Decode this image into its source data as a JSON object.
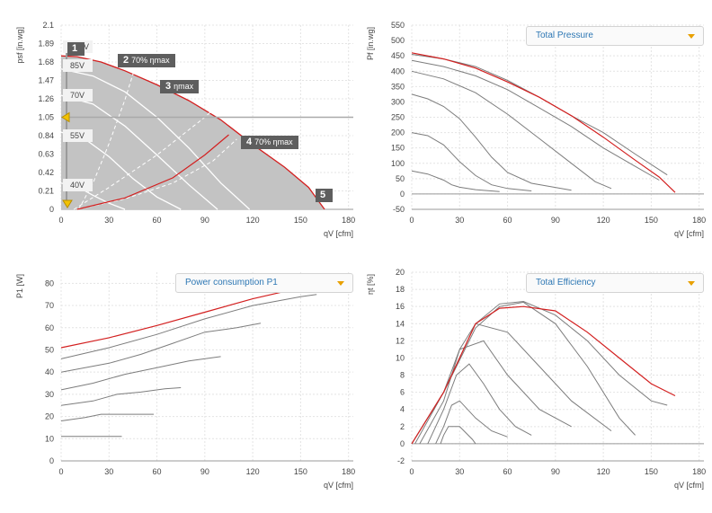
{
  "chart_data": [
    {
      "type": "area",
      "ylabel": "psf [in.wg]",
      "xlabel": "qV [cfm]",
      "x_ticks": [
        "0",
        "30",
        "60",
        "90",
        "120",
        "150",
        "180"
      ],
      "y_ticks": [
        "0",
        "0.21",
        "0.42",
        "0.63",
        "0.84",
        "1.05",
        "1.26",
        "1.47",
        "1.68",
        "1.89",
        "2.1"
      ],
      "xlim": [
        0,
        183
      ],
      "ylim": [
        0,
        2.1
      ],
      "grid": true,
      "operating_area": [
        [
          0,
          1.75
        ],
        [
          10,
          1.74
        ],
        [
          25,
          1.68
        ],
        [
          40,
          1.58
        ],
        [
          60,
          1.42
        ],
        [
          80,
          1.24
        ],
        [
          100,
          1.02
        ],
        [
          120,
          0.74
        ],
        [
          140,
          0.48
        ],
        [
          155,
          0.25
        ],
        [
          165,
          0
        ]
      ],
      "voltage_curves": [
        {
          "label": "85V",
          "points": [
            [
              0,
              1.6
            ],
            [
              20,
              1.52
            ],
            [
              40,
              1.34
            ],
            [
              60,
              1.05
            ],
            [
              80,
              0.7
            ],
            [
              100,
              0.3
            ],
            [
              118,
              0
            ]
          ]
        },
        {
          "label": "70V",
          "points": [
            [
              0,
              1.3
            ],
            [
              20,
              1.2
            ],
            [
              40,
              0.95
            ],
            [
              60,
              0.62
            ],
            [
              80,
              0.28
            ],
            [
              98,
              0
            ]
          ]
        },
        {
          "label": "55V",
          "points": [
            [
              0,
              0.88
            ],
            [
              15,
              0.8
            ],
            [
              30,
              0.6
            ],
            [
              45,
              0.35
            ],
            [
              60,
              0.14
            ],
            [
              75,
              0
            ]
          ]
        },
        {
          "label": "40V",
          "points": [
            [
              0,
              0.3
            ],
            [
              10,
              0.26
            ],
            [
              20,
              0.16
            ],
            [
              30,
              0.07
            ],
            [
              40,
              0
            ]
          ]
        }
      ],
      "eff_curves": [
        {
          "points": [
            [
              11,
              0
            ],
            [
              20,
              0.3
            ],
            [
              30,
              0.75
            ],
            [
              40,
              1.25
            ],
            [
              46,
              1.6
            ]
          ]
        },
        {
          "points": [
            [
              8,
              0
            ],
            [
              30,
              0.25
            ],
            [
              60,
              0.62
            ],
            [
              90,
              1.05
            ],
            [
              110,
              1.38
            ]
          ]
        },
        {
          "points": [
            [
              10,
              0
            ],
            [
              40,
              0.12
            ],
            [
              70,
              0.3
            ],
            [
              95,
              0.55
            ],
            [
              110,
              0.8
            ]
          ]
        }
      ],
      "operating_line": {
        "points": [
          [
            10,
            0
          ],
          [
            40,
            0.13
          ],
          [
            70,
            0.36
          ],
          [
            90,
            0.62
          ],
          [
            105,
            0.85
          ]
        ]
      },
      "voltage_label_positions": [
        [
          "100V",
          1.85
        ],
        [
          "85V",
          1.64
        ],
        [
          "70V",
          1.3
        ],
        [
          "55V",
          0.84
        ],
        [
          "40V",
          0.28
        ]
      ],
      "markers": [
        {
          "num": "1",
          "text": ""
        },
        {
          "num": "2",
          "text": "70% ηmax"
        },
        {
          "num": "3",
          "text": "ηmax"
        },
        {
          "num": "4",
          "text": "70% ηmax"
        },
        {
          "num": "5",
          "text": ""
        }
      ]
    },
    {
      "type": "line",
      "ylabel": "Pf [in.wg]",
      "xlabel": "qV [cfm]",
      "dropdown": "Total Pressure",
      "x_ticks": [
        "0",
        "30",
        "60",
        "90",
        "120",
        "150",
        "180"
      ],
      "y_ticks": [
        "-50",
        "0",
        "50",
        "100",
        "150",
        "200",
        "250",
        "300",
        "350",
        "400",
        "450",
        "500",
        "550"
      ],
      "xlim": [
        0,
        183
      ],
      "ylim": [
        -50,
        550
      ],
      "series": [
        {
          "color": "#7d7d7d",
          "points": [
            [
              0,
              455
            ],
            [
              20,
              440
            ],
            [
              40,
              415
            ],
            [
              60,
              370
            ],
            [
              80,
              315
            ],
            [
              100,
              255
            ],
            [
              120,
              200
            ],
            [
              140,
              130
            ],
            [
              160,
              62
            ]
          ]
        },
        {
          "color": "#7d7d7d",
          "points": [
            [
              0,
              435
            ],
            [
              20,
              415
            ],
            [
              40,
              385
            ],
            [
              60,
              340
            ],
            [
              80,
              280
            ],
            [
              100,
              220
            ],
            [
              120,
              150
            ],
            [
              140,
              90
            ],
            [
              155,
              45
            ]
          ]
        },
        {
          "color": "#7d7d7d",
          "points": [
            [
              0,
              400
            ],
            [
              20,
              375
            ],
            [
              40,
              330
            ],
            [
              60,
              260
            ],
            [
              80,
              180
            ],
            [
              100,
              100
            ],
            [
              115,
              40
            ],
            [
              125,
              18
            ]
          ]
        },
        {
          "color": "#7d7d7d",
          "points": [
            [
              0,
              325
            ],
            [
              10,
              310
            ],
            [
              20,
              285
            ],
            [
              30,
              245
            ],
            [
              40,
              185
            ],
            [
              50,
              120
            ],
            [
              60,
              70
            ],
            [
              75,
              35
            ],
            [
              100,
              12
            ]
          ]
        },
        {
          "color": "#7d7d7d",
          "points": [
            [
              0,
              200
            ],
            [
              10,
              190
            ],
            [
              20,
              160
            ],
            [
              30,
              105
            ],
            [
              40,
              60
            ],
            [
              50,
              30
            ],
            [
              60,
              18
            ],
            [
              75,
              10
            ]
          ]
        },
        {
          "color": "#7d7d7d",
          "points": [
            [
              0,
              75
            ],
            [
              10,
              65
            ],
            [
              20,
              45
            ],
            [
              25,
              30
            ],
            [
              30,
              22
            ],
            [
              40,
              14
            ],
            [
              55,
              8
            ]
          ]
        },
        {
          "color": "#d32020",
          "points": [
            [
              0,
              460
            ],
            [
              20,
              440
            ],
            [
              40,
              410
            ],
            [
              60,
              365
            ],
            [
              80,
              315
            ],
            [
              100,
              255
            ],
            [
              120,
              185
            ],
            [
              140,
              110
            ],
            [
              155,
              55
            ],
            [
              165,
              5
            ]
          ]
        }
      ]
    },
    {
      "type": "line",
      "ylabel": "P1 [W]",
      "xlabel": "qV [cfm]",
      "dropdown": "Power consumption P1",
      "x_ticks": [
        "0",
        "30",
        "60",
        "90",
        "120",
        "150",
        "180"
      ],
      "y_ticks": [
        "0",
        "10",
        "20",
        "30",
        "40",
        "50",
        "60",
        "70",
        "80"
      ],
      "xlim": [
        0,
        183
      ],
      "ylim": [
        0,
        85
      ],
      "series": [
        {
          "color": "#7d7d7d",
          "points": [
            [
              0,
              11
            ],
            [
              10,
              11
            ],
            [
              20,
              11
            ],
            [
              30,
              11
            ],
            [
              38,
              11
            ]
          ]
        },
        {
          "color": "#7d7d7d",
          "points": [
            [
              0,
              18
            ],
            [
              15,
              19.5
            ],
            [
              25,
              21
            ],
            [
              40,
              21
            ],
            [
              58,
              21
            ]
          ]
        },
        {
          "color": "#7d7d7d",
          "points": [
            [
              0,
              25
            ],
            [
              20,
              27
            ],
            [
              35,
              30
            ],
            [
              50,
              31
            ],
            [
              65,
              32.5
            ],
            [
              75,
              33
            ]
          ]
        },
        {
          "color": "#7d7d7d",
          "points": [
            [
              0,
              32
            ],
            [
              20,
              35
            ],
            [
              40,
              39
            ],
            [
              60,
              42
            ],
            [
              80,
              45
            ],
            [
              100,
              47
            ]
          ]
        },
        {
          "color": "#7d7d7d",
          "points": [
            [
              0,
              40
            ],
            [
              30,
              44
            ],
            [
              50,
              48
            ],
            [
              70,
              53
            ],
            [
              90,
              58
            ],
            [
              110,
              60
            ],
            [
              125,
              62
            ]
          ]
        },
        {
          "color": "#7d7d7d",
          "points": [
            [
              0,
              46
            ],
            [
              30,
              51
            ],
            [
              60,
              57
            ],
            [
              90,
              64
            ],
            [
              120,
              70
            ],
            [
              150,
              74
            ],
            [
              160,
              75
            ]
          ]
        },
        {
          "color": "#d32020",
          "points": [
            [
              0,
              51
            ],
            [
              30,
              55.5
            ],
            [
              60,
              61
            ],
            [
              90,
              67
            ],
            [
              120,
              73
            ],
            [
              150,
              78
            ],
            [
              165,
              80.5
            ]
          ]
        }
      ]
    },
    {
      "type": "line",
      "ylabel": "ηt [%]",
      "xlabel": "qV [cfm]",
      "dropdown": "Total Efficiency",
      "x_ticks": [
        "0",
        "30",
        "60",
        "90",
        "120",
        "150",
        "180"
      ],
      "y_ticks": [
        "-2",
        "0",
        "2",
        "4",
        "6",
        "8",
        "10",
        "12",
        "14",
        "16",
        "18",
        "20"
      ],
      "xlim": [
        0,
        183
      ],
      "ylim": [
        -2,
        20
      ],
      "series": [
        {
          "color": "#7d7d7d",
          "points": [
            [
              0,
              0
            ],
            [
              20,
              6
            ],
            [
              40,
              14
            ],
            [
              55,
              16.3
            ],
            [
              70,
              16.6
            ],
            [
              90,
              15
            ],
            [
              110,
              12
            ],
            [
              130,
              8
            ],
            [
              150,
              5
            ],
            [
              160,
              4.5
            ]
          ]
        },
        {
          "color": "#7d7d7d",
          "points": [
            [
              0,
              0
            ],
            [
              20,
              6
            ],
            [
              40,
              13.5
            ],
            [
              55,
              16
            ],
            [
              70,
              16.5
            ],
            [
              90,
              14
            ],
            [
              110,
              9
            ],
            [
              130,
              3
            ],
            [
              140,
              1
            ]
          ]
        },
        {
          "color": "#7d7d7d",
          "points": [
            [
              2,
              0
            ],
            [
              20,
              6
            ],
            [
              30,
              11
            ],
            [
              40,
              14
            ],
            [
              60,
              13
            ],
            [
              80,
              9
            ],
            [
              100,
              5
            ],
            [
              125,
              1.5
            ]
          ]
        },
        {
          "color": "#7d7d7d",
          "points": [
            [
              5,
              0
            ],
            [
              20,
              5
            ],
            [
              30,
              11
            ],
            [
              45,
              12
            ],
            [
              60,
              8
            ],
            [
              80,
              4
            ],
            [
              100,
              2
            ]
          ]
        },
        {
          "color": "#7d7d7d",
          "points": [
            [
              10,
              0
            ],
            [
              20,
              4
            ],
            [
              28,
              8
            ],
            [
              36,
              9.3
            ],
            [
              45,
              7
            ],
            [
              55,
              4
            ],
            [
              65,
              2
            ],
            [
              75,
              1
            ]
          ]
        },
        {
          "color": "#7d7d7d",
          "points": [
            [
              15,
              0
            ],
            [
              20,
              2
            ],
            [
              25,
              4.5
            ],
            [
              30,
              5
            ],
            [
              40,
              3
            ],
            [
              50,
              1.5
            ],
            [
              60,
              0.8
            ]
          ]
        },
        {
          "color": "#7d7d7d",
          "points": [
            [
              18,
              0
            ],
            [
              20,
              1
            ],
            [
              23,
              2
            ],
            [
              30,
              2
            ],
            [
              38,
              0.5
            ],
            [
              40,
              0
            ]
          ]
        },
        {
          "color": "#d32020",
          "points": [
            [
              0,
              0
            ],
            [
              20,
              6
            ],
            [
              40,
              14
            ],
            [
              55,
              15.8
            ],
            [
              70,
              16
            ],
            [
              90,
              15.5
            ],
            [
              110,
              13
            ],
            [
              130,
              10
            ],
            [
              150,
              7
            ],
            [
              165,
              5.6
            ]
          ]
        }
      ]
    }
  ]
}
